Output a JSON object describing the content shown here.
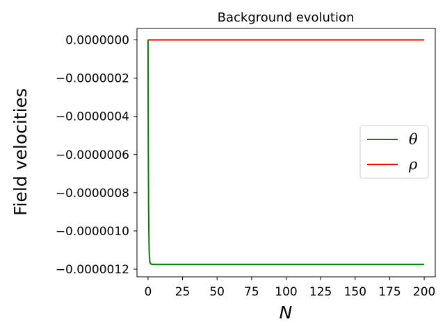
{
  "chart_data": {
    "type": "line",
    "title": "Background evolution",
    "xlabel": "N",
    "ylabel": "Field velocities",
    "xlim": [
      -8,
      208
    ],
    "ylim": [
      -1.24e-06,
      6e-08
    ],
    "xticks": [
      0,
      25,
      50,
      75,
      100,
      125,
      150,
      175,
      200
    ],
    "xtick_labels": [
      "0",
      "25",
      "50",
      "75",
      "100",
      "125",
      "150",
      "175",
      "200"
    ],
    "yticks": [
      0,
      -2e-07,
      -4e-07,
      -6e-07,
      -8e-07,
      -1e-06,
      -1.2e-06
    ],
    "ytick_labels": [
      "0.0000000",
      "−0.0000002",
      "−0.0000004",
      "−0.0000006",
      "−0.0000008",
      "−0.0000010",
      "−0.0000012"
    ],
    "legend_position": "center-right",
    "grid": false,
    "series": [
      {
        "name": "θ",
        "color": "#008000",
        "x": [
          0,
          0.2,
          0.4,
          0.6,
          0.8,
          1.0,
          1.3,
          1.6,
          2.0,
          2.5,
          3.0,
          4.0,
          6.0,
          10,
          50,
          100,
          150,
          200
        ],
        "y": [
          0,
          -5.6e-07,
          -8.5e-07,
          -1e-06,
          -1.09e-06,
          -1.13e-06,
          -1.16e-06,
          -1.168e-06,
          -1.172e-06,
          -1.174e-06,
          -1.175e-06,
          -1.175e-06,
          -1.175e-06,
          -1.175e-06,
          -1.175e-06,
          -1.175e-06,
          -1.175e-06,
          -1.175e-06
        ]
      },
      {
        "name": "ρ",
        "color": "#ff0000",
        "x": [
          0,
          50,
          100,
          150,
          200
        ],
        "y": [
          0,
          0,
          0,
          0,
          0
        ]
      }
    ]
  }
}
